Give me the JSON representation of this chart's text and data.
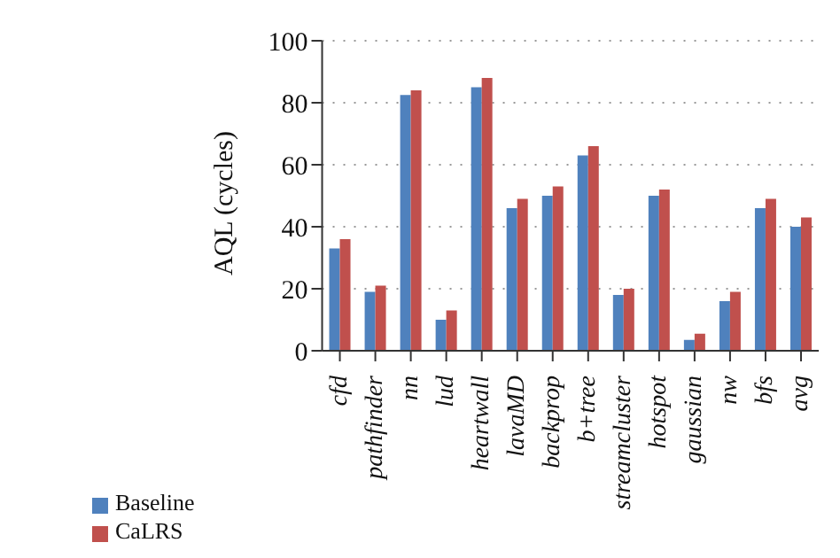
{
  "chart_data": {
    "type": "bar",
    "ylabel": "AQL (cycles)",
    "categories": [
      "cfd",
      "pathfinder",
      "nn",
      "lud",
      "heartwall",
      "lavaMD",
      "backprop",
      "b+tree",
      "streamcluster",
      "hotspot",
      "gaussian",
      "nw",
      "bfs",
      "avg"
    ],
    "series": [
      {
        "name": "Baseline",
        "color": "#4f81bd",
        "values": [
          33,
          19,
          82.5,
          10,
          85,
          46,
          50,
          63,
          18,
          50,
          3.5,
          16,
          46,
          40
        ]
      },
      {
        "name": "CaLRS",
        "color": "#c0504d",
        "values": [
          36,
          21,
          84,
          13,
          88,
          49,
          53,
          66,
          20,
          52,
          5.5,
          19,
          49,
          43
        ]
      }
    ],
    "ylim": [
      0,
      100
    ],
    "yticks": [
      0,
      20,
      40,
      60,
      80,
      100
    ],
    "grid": "y",
    "legend": "bottom left"
  }
}
